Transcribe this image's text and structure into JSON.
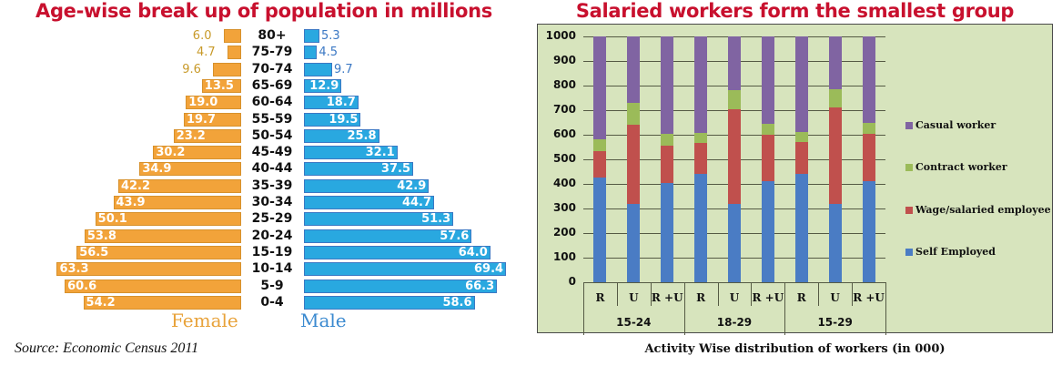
{
  "left": {
    "title": "Age-wise break up of population in millions",
    "female_label": "Female",
    "male_label": "Male",
    "source": "Source: Economic Census 2011"
  },
  "right": {
    "title": "Salaried workers form the smallest group",
    "caption": "Activity Wise distribution of workers (in 000)"
  },
  "colors": {
    "female": "#f2a33a",
    "male": "#29a8e0",
    "self_employed": "#4a7cc4",
    "wage_salaried": "#c0504d",
    "contract": "#9bbb59",
    "casual": "#8064a2",
    "panel_bg": "#d7e4bd",
    "title_red": "#c8102e"
  },
  "chart_data": [
    {
      "type": "bar",
      "orientation": "horizontal",
      "subtype": "population-pyramid",
      "title": "Age-wise break up of population in millions",
      "categories": [
        "80+",
        "75-79",
        "70-74",
        "65-69",
        "60-64",
        "55-59",
        "50-54",
        "45-49",
        "40-44",
        "35-39",
        "30-34",
        "25-29",
        "20-24",
        "15-19",
        "10-14",
        "5-9",
        "0-4"
      ],
      "series": [
        {
          "name": "Female",
          "values": [
            6.0,
            4.7,
            9.6,
            13.5,
            19.0,
            19.7,
            23.2,
            30.2,
            34.9,
            42.2,
            43.9,
            50.1,
            53.8,
            56.5,
            63.3,
            60.6,
            54.2
          ]
        },
        {
          "name": "Male",
          "values": [
            5.3,
            4.5,
            9.7,
            12.9,
            18.7,
            19.5,
            25.8,
            32.1,
            37.5,
            42.9,
            44.7,
            51.3,
            57.6,
            64.0,
            69.4,
            66.3,
            58.6
          ]
        }
      ],
      "xlabel": "",
      "ylabel": "",
      "annotation": "Source: Economic Census 2011",
      "legend": [
        "Female",
        "Male"
      ]
    },
    {
      "type": "bar",
      "subtype": "stacked",
      "title": "Salaried workers form the smallest group",
      "xlabel": "Activity Wise distribution of workers (in 000)",
      "ylabel": "",
      "ylim": [
        0,
        1000
      ],
      "yticks": [
        0,
        100,
        200,
        300,
        400,
        500,
        600,
        700,
        800,
        900,
        1000
      ],
      "grid": true,
      "legend_position": "right",
      "groups": [
        "15-24",
        "18-29",
        "15-29"
      ],
      "categories": [
        "R",
        "U",
        "R +U",
        "R",
        "U",
        "R +U",
        "R",
        "U",
        "R +U"
      ],
      "series": [
        {
          "name": "Self Employed",
          "values": [
            425,
            320,
            405,
            440,
            320,
            410,
            440,
            320,
            410
          ]
        },
        {
          "name": "Wage/salaried employee",
          "values": [
            110,
            320,
            150,
            125,
            385,
            190,
            130,
            390,
            195
          ]
        },
        {
          "name": "Contract worker",
          "values": [
            45,
            90,
            50,
            42,
            75,
            45,
            40,
            75,
            45
          ]
        },
        {
          "name": "Casual worker",
          "values": [
            420,
            270,
            395,
            393,
            220,
            355,
            390,
            215,
            350
          ]
        }
      ],
      "legend": [
        "Casual worker",
        "Contract worker",
        "Wage/salaried employee",
        "Self Employed"
      ]
    }
  ]
}
